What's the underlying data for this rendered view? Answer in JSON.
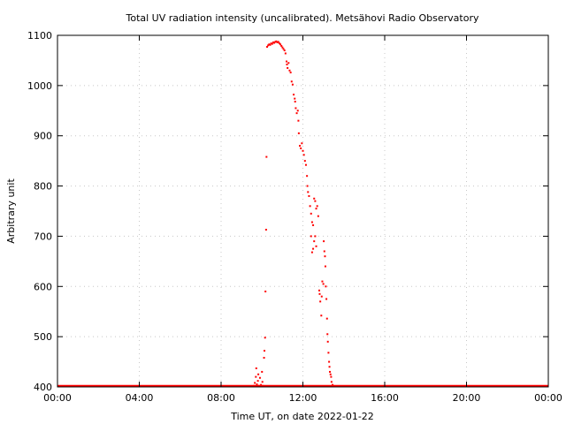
{
  "chart_data": {
    "type": "scatter",
    "title": "Total UV radiation intensity (uncalibrated). Metsähovi Radio Observatory",
    "xlabel": "Time UT, on date 2022-01-22",
    "ylabel": "Arbitrary unit",
    "xlim": [
      0,
      24
    ],
    "ylim": [
      400,
      1100
    ],
    "x_ticks": [
      {
        "value": 0,
        "label": "00:00"
      },
      {
        "value": 4,
        "label": "04:00"
      },
      {
        "value": 8,
        "label": "08:00"
      },
      {
        "value": 12,
        "label": "12:00"
      },
      {
        "value": 16,
        "label": "16:00"
      },
      {
        "value": 20,
        "label": "20:00"
      },
      {
        "value": 24,
        "label": "00:00"
      }
    ],
    "y_ticks": [
      400,
      500,
      600,
      700,
      800,
      900,
      1000,
      1100
    ],
    "grid": true,
    "colors": {
      "points": "#ff0000",
      "grid": "#c8c8c8",
      "axes": "#000000"
    },
    "baseline": {
      "value": 400,
      "x_start": 0,
      "x_end": 24,
      "note": "dense trace of points at the axis minimum"
    },
    "points": [
      [
        9.6,
        402
      ],
      [
        9.65,
        408
      ],
      [
        9.7,
        420
      ],
      [
        9.72,
        437
      ],
      [
        9.75,
        405
      ],
      [
        9.8,
        412
      ],
      [
        9.82,
        425
      ],
      [
        9.85,
        402
      ],
      [
        9.9,
        418
      ],
      [
        9.95,
        404
      ],
      [
        10.0,
        430
      ],
      [
        10.02,
        410
      ],
      [
        10.05,
        402
      ],
      [
        10.1,
        458
      ],
      [
        10.12,
        472
      ],
      [
        10.15,
        498
      ],
      [
        10.17,
        590
      ],
      [
        10.2,
        713
      ],
      [
        10.22,
        858
      ],
      [
        10.25,
        1077
      ],
      [
        10.3,
        1080
      ],
      [
        10.35,
        1082
      ],
      [
        10.4,
        1081
      ],
      [
        10.45,
        1084
      ],
      [
        10.5,
        1083
      ],
      [
        10.55,
        1086
      ],
      [
        10.6,
        1085
      ],
      [
        10.65,
        1087
      ],
      [
        10.7,
        1088
      ],
      [
        10.75,
        1086
      ],
      [
        10.8,
        1087
      ],
      [
        10.85,
        1084
      ],
      [
        10.9,
        1082
      ],
      [
        10.95,
        1079
      ],
      [
        11.0,
        1076
      ],
      [
        11.05,
        1073
      ],
      [
        11.1,
        1070
      ],
      [
        11.15,
        1064
      ],
      [
        11.2,
        1048
      ],
      [
        11.22,
        1042
      ],
      [
        11.25,
        1035
      ],
      [
        11.3,
        1045
      ],
      [
        11.35,
        1030
      ],
      [
        11.4,
        1026
      ],
      [
        11.45,
        1008
      ],
      [
        11.5,
        1002
      ],
      [
        11.55,
        982
      ],
      [
        11.6,
        974
      ],
      [
        11.62,
        968
      ],
      [
        11.65,
        955
      ],
      [
        11.7,
        945
      ],
      [
        11.75,
        950
      ],
      [
        11.78,
        930
      ],
      [
        11.8,
        905
      ],
      [
        11.85,
        880
      ],
      [
        11.9,
        875
      ],
      [
        11.95,
        885
      ],
      [
        12.0,
        870
      ],
      [
        12.05,
        862
      ],
      [
        12.1,
        850
      ],
      [
        12.15,
        842
      ],
      [
        12.2,
        820
      ],
      [
        12.22,
        800
      ],
      [
        12.25,
        788
      ],
      [
        12.3,
        780
      ],
      [
        12.35,
        760
      ],
      [
        12.4,
        745
      ],
      [
        12.45,
        728
      ],
      [
        12.5,
        722
      ],
      [
        12.55,
        775
      ],
      [
        12.6,
        770
      ],
      [
        12.65,
        755
      ],
      [
        12.7,
        760
      ],
      [
        12.75,
        740
      ],
      [
        12.6,
        700
      ],
      [
        12.55,
        690
      ],
      [
        12.5,
        675
      ],
      [
        12.45,
        668
      ],
      [
        12.4,
        700
      ],
      [
        12.65,
        680
      ],
      [
        12.8,
        592
      ],
      [
        12.82,
        585
      ],
      [
        12.85,
        570
      ],
      [
        12.9,
        542
      ],
      [
        12.92,
        580
      ],
      [
        12.95,
        610
      ],
      [
        13.0,
        605
      ],
      [
        13.02,
        690
      ],
      [
        13.05,
        670
      ],
      [
        13.08,
        660
      ],
      [
        13.1,
        640
      ],
      [
        13.12,
        600
      ],
      [
        13.15,
        575
      ],
      [
        13.18,
        536
      ],
      [
        13.2,
        505
      ],
      [
        13.22,
        490
      ],
      [
        13.25,
        468
      ],
      [
        13.28,
        450
      ],
      [
        13.3,
        440
      ],
      [
        13.32,
        430
      ],
      [
        13.35,
        425
      ],
      [
        13.38,
        420
      ],
      [
        13.4,
        410
      ],
      [
        13.45,
        404
      ],
      [
        13.5,
        402
      ],
      [
        13.55,
        401
      ]
    ]
  }
}
